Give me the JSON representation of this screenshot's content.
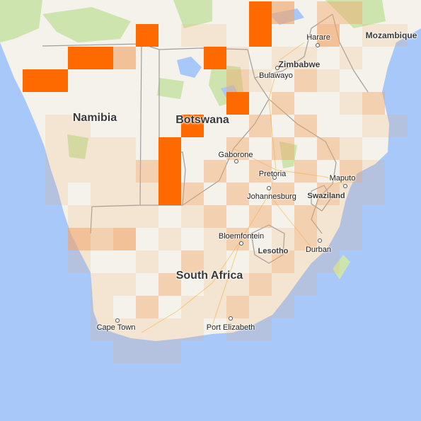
{
  "map": {
    "region": "Southern Africa",
    "colors": {
      "water": "#a7c8f9",
      "land": "#f4f2ea",
      "park": "#cde4ae",
      "border": "#9e9e9e",
      "heat_strong": "#ff6a00",
      "heat_light": "#f2a66a"
    },
    "countries": [
      {
        "id": "namibia",
        "name": "Namibia"
      },
      {
        "id": "botswana",
        "name": "Botswana"
      },
      {
        "id": "zimbabwe",
        "name": "Zimbabwe"
      },
      {
        "id": "mozambique",
        "name": "Mozambique"
      },
      {
        "id": "south-africa",
        "name": "South Africa"
      },
      {
        "id": "swaziland",
        "name": "Swaziland"
      },
      {
        "id": "lesotho",
        "name": "Lesotho"
      }
    ],
    "cities": [
      {
        "id": "harare",
        "name": "Harare"
      },
      {
        "id": "bulawayo",
        "name": "Bulawayo"
      },
      {
        "id": "gaborone",
        "name": "Gaborone"
      },
      {
        "id": "pretoria",
        "name": "Pretoria"
      },
      {
        "id": "johannesburg",
        "name": "Johannesburg"
      },
      {
        "id": "maputo",
        "name": "Maputo"
      },
      {
        "id": "bloemfontein",
        "name": "Bloemfontein"
      },
      {
        "id": "durban",
        "name": "Durban"
      },
      {
        "id": "cape-town",
        "name": "Cape Town"
      },
      {
        "id": "port-elizabeth",
        "name": "Port Elizabeth"
      }
    ],
    "heatmap_intensity_levels": [
      "strong",
      "medium",
      "light",
      "faint"
    ]
  }
}
